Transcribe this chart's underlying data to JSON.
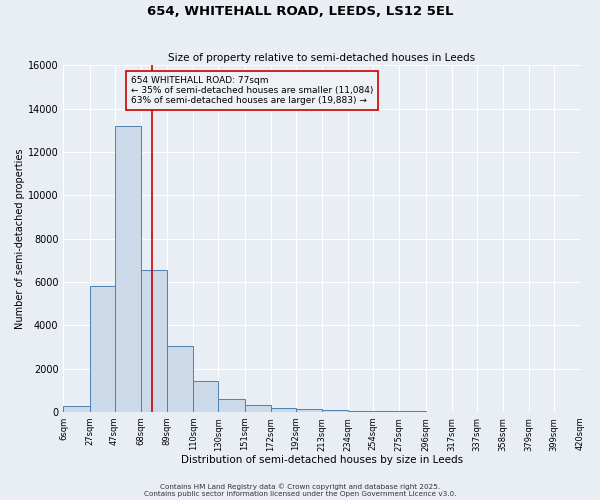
{
  "title": "654, WHITEHALL ROAD, LEEDS, LS12 5EL",
  "subtitle": "Size of property relative to semi-detached houses in Leeds",
  "xlabel": "Distribution of semi-detached houses by size in Leeds",
  "ylabel": "Number of semi-detached properties",
  "bin_edges": [
    6,
    27,
    47,
    68,
    89,
    110,
    130,
    151,
    172,
    192,
    213,
    234,
    254,
    275,
    296,
    317,
    337,
    358,
    379,
    399,
    420
  ],
  "bin_labels": [
    "6sqm",
    "27sqm",
    "47sqm",
    "68sqm",
    "89sqm",
    "110sqm",
    "130sqm",
    "151sqm",
    "172sqm",
    "192sqm",
    "213sqm",
    "234sqm",
    "254sqm",
    "275sqm",
    "296sqm",
    "317sqm",
    "337sqm",
    "358sqm",
    "379sqm",
    "399sqm",
    "420sqm"
  ],
  "counts": [
    290,
    5800,
    13200,
    6550,
    3050,
    1450,
    620,
    320,
    190,
    130,
    90,
    60,
    40,
    30,
    20,
    10,
    5,
    0,
    0,
    0
  ],
  "bar_facecolor": "#ccd9e8",
  "bar_edgecolor": "#5080b0",
  "vline_x": 77,
  "vline_color": "#cc0000",
  "annotation_title": "654 WHITEHALL ROAD: 77sqm",
  "annotation_line1": "← 35% of semi-detached houses are smaller (11,084)",
  "annotation_line2": "63% of semi-detached houses are larger (19,883) →",
  "annotation_box_edgecolor": "#cc0000",
  "annotation_box_facecolor": "#eef2f7",
  "ylim": [
    0,
    16000
  ],
  "yticks": [
    0,
    2000,
    4000,
    6000,
    8000,
    10000,
    12000,
    14000,
    16000
  ],
  "bg_color": "#e8eef4",
  "grid_color": "#ffffff",
  "footer1": "Contains HM Land Registry data © Crown copyright and database right 2025.",
  "footer2": "Contains public sector information licensed under the Open Government Licence v3.0."
}
